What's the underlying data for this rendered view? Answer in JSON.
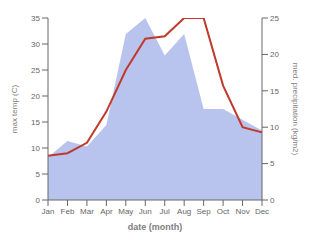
{
  "chart_data": {
    "type": "line",
    "xlabel": "date (month)",
    "ylabel": "max temp (C)",
    "y2label": "med. precipitation (kg/m2)",
    "categories": [
      "Jan",
      "Feb",
      "Mar",
      "Apr",
      "May",
      "Jun",
      "Jul",
      "Aug",
      "Sep",
      "Oct",
      "Nov",
      "Dec"
    ],
    "ylim": [
      0,
      35
    ],
    "yticks": [
      0,
      5,
      10,
      15,
      20,
      25,
      30,
      35
    ],
    "y2lim": [
      0,
      25
    ],
    "y2ticks": [
      0,
      5,
      10,
      15,
      20,
      25
    ],
    "grid": false,
    "series": [
      {
        "type": "area",
        "axis": "y2",
        "color": "#b8c4ee",
        "values": [
          5.882352941,
          8.088235294,
          7.352941176,
          10.29411765,
          22.79411765,
          25,
          19.85294118,
          22.79411765,
          12.5,
          12.5,
          11.02941176,
          9.558823529
        ]
      },
      {
        "type": "line",
        "color": "#c0392b",
        "values": [
          8.5,
          9.0,
          11.0,
          17.0,
          25.0,
          31.0,
          31.5,
          35.0,
          35.0,
          22.0,
          14.0,
          13.0
        ]
      }
    ]
  }
}
